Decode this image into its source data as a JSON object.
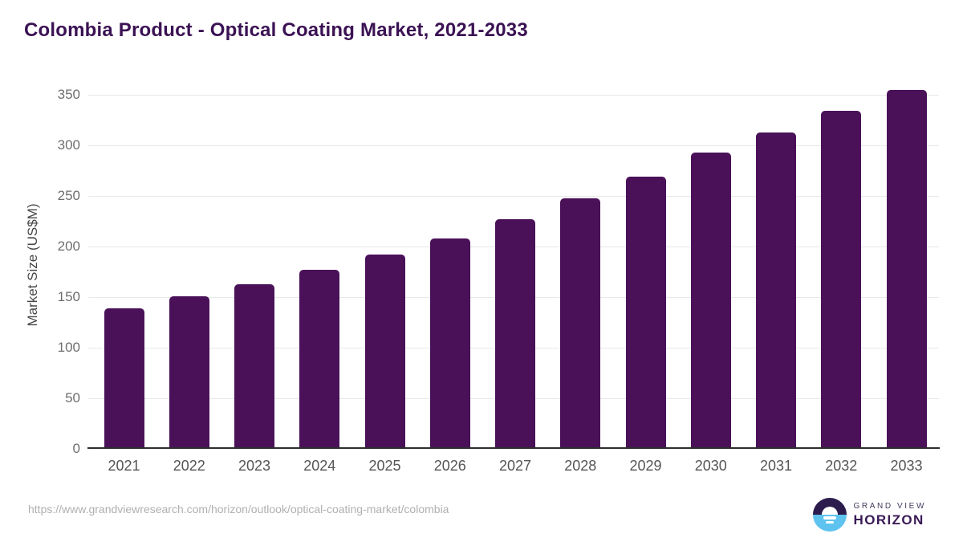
{
  "header": {
    "title": "Colombia Product - Optical Coating Market, 2021-2033"
  },
  "chart_data": {
    "type": "bar",
    "title": "Colombia Product - Optical Coating Market, 2021-2033",
    "categories": [
      "2021",
      "2022",
      "2023",
      "2024",
      "2025",
      "2026",
      "2027",
      "2028",
      "2029",
      "2030",
      "2031",
      "2032",
      "2033"
    ],
    "values": [
      139,
      151,
      163,
      177,
      192,
      208,
      227,
      248,
      269,
      293,
      313,
      334,
      355
    ],
    "xlabel": "",
    "ylabel": "Market Size (US$M)",
    "ylim": [
      0,
      350
    ],
    "yticks": [
      0,
      50,
      100,
      150,
      200,
      250,
      300,
      350
    ],
    "grid": true,
    "legend": false,
    "bar_color": "#4a1159"
  },
  "footer": {
    "source_url": "https://www.grandviewresearch.com/horizon/outlook/optical-coating-market/colombia",
    "logo": {
      "line1": "GRAND VIEW",
      "line2": "HORIZON"
    }
  },
  "colors": {
    "title_text": "#3b1254",
    "bar": "#4a1159",
    "grid_line": "#e8e8e8",
    "axis_line": "#2d2d2d",
    "tick_text": "#6e6e6e",
    "logo_dark": "#2c1c4d",
    "logo_blue": "#5fc3ef"
  }
}
